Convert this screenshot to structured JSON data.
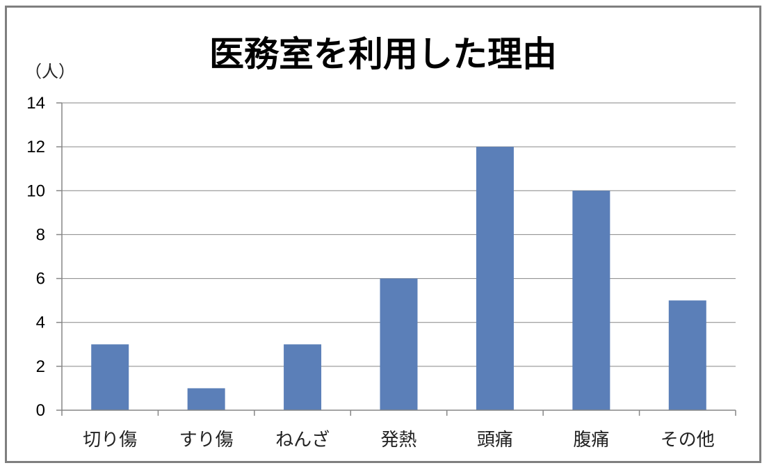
{
  "chart_data": {
    "type": "bar",
    "title": "医務室を利用した理由",
    "ylabel": "（人）",
    "xlabel": "",
    "categories": [
      "切り傷",
      "すり傷",
      "ねんざ",
      "発熱",
      "頭痛",
      "腹痛",
      "その他"
    ],
    "values": [
      3,
      1,
      3,
      6,
      12,
      10,
      5
    ],
    "ylim": [
      0,
      14
    ],
    "yticks": [
      0,
      2,
      4,
      6,
      8,
      10,
      12,
      14
    ],
    "grid": true,
    "legend": "none",
    "bar_color": "#5b7fb8"
  }
}
